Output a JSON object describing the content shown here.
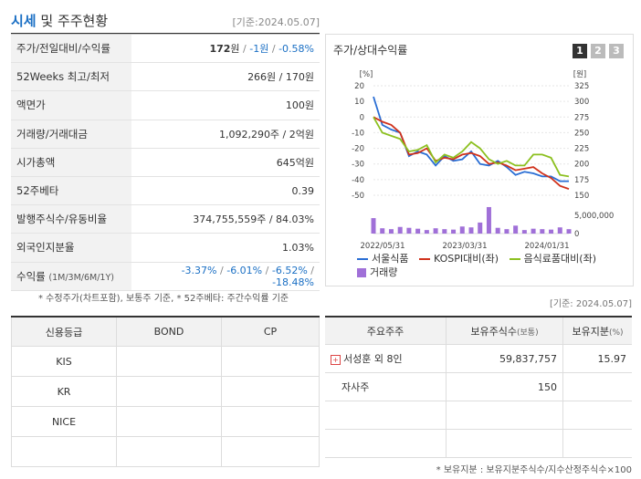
{
  "header": {
    "title_highlight": "시세",
    "title_rest": " 및 주주현황",
    "as_of": "[기준:2024.05.07]"
  },
  "stock": {
    "price_label": "주가/전일대비/수익률",
    "price": "172",
    "price_unit": "원",
    "change": "-1원",
    "rate": "-0.58%",
    "w52_label": "52Weeks 최고/최저",
    "w52_value": "266원 / 170원",
    "par_label": "액면가",
    "par_value": "100원",
    "volume_label": "거래량/거래대금",
    "volume_value": "1,092,290주 / 2억원",
    "mcap_label": "시가총액",
    "mcap_value": "645억원",
    "beta_label": "52주베타",
    "beta_value": "0.39",
    "shares_label": "발행주식수/유동비율",
    "shares_value": "374,755,559주 / 84.03%",
    "foreign_label": "외국인지분율",
    "foreign_value": "1.03%",
    "return_label": "수익률",
    "return_periods": "(1M/3M/6M/1Y)",
    "return_1m": "-3.37%",
    "return_3m": "-6.01%",
    "return_6m": "-6.52%",
    "return_1y": "-18.48%"
  },
  "footnote1": "* 수정주가(차트포함), 보통주 기준, * 52주베타: 주간수익률 기준",
  "chart_panel": {
    "title": "주가/상대수익률",
    "pages": [
      "1",
      "2",
      "3"
    ]
  },
  "chart_data": {
    "type": "line",
    "left_unit": "[%]",
    "right_unit": "[원]",
    "left_ticks": [
      20,
      10,
      0,
      -10,
      -20,
      -30,
      -40,
      -50
    ],
    "right_ticks": [
      325,
      300,
      275,
      250,
      225,
      200,
      175,
      150
    ],
    "volume_tick": "5,000,000",
    "volume_zero": "0",
    "x_ticks": [
      "2022/05/31",
      "2023/03/31",
      "2024/01/31"
    ],
    "ylim_left": [
      -50,
      20
    ],
    "series": [
      {
        "name": "서울식품",
        "color": "#2a6ed4",
        "values": [
          13,
          -5,
          -8,
          -10,
          -25,
          -22,
          -24,
          -31,
          -25,
          -28,
          -27,
          -22,
          -30,
          -31,
          -28,
          -32,
          -37,
          -35,
          -36,
          -38,
          -38,
          -41,
          -41
        ]
      },
      {
        "name": "KOSPI대비(좌)",
        "color": "#d0321c",
        "values": [
          0,
          -3,
          -5,
          -10,
          -24,
          -23,
          -20,
          -28,
          -26,
          -27,
          -24,
          -23,
          -25,
          -30,
          -29,
          -31,
          -34,
          -33,
          -32,
          -36,
          -39,
          -44,
          -46
        ]
      },
      {
        "name": "음식료품대비(좌)",
        "color": "#8cc020",
        "values": [
          0,
          -10,
          -12,
          -14,
          -22,
          -21,
          -18,
          -29,
          -24,
          -26,
          -22,
          -16,
          -20,
          -27,
          -30,
          -28,
          -31,
          -31,
          -24,
          -24,
          -26,
          -37,
          -38
        ]
      }
    ],
    "volume": {
      "name": "거래량",
      "color": "#a070d8",
      "values": [
        3.5,
        1.2,
        1.0,
        1.5,
        1.3,
        1.1,
        0.8,
        1.2,
        1.0,
        0.9,
        1.6,
        1.4,
        2.5,
        6.0,
        1.3,
        1.0,
        1.8,
        0.8,
        1.1,
        1.0,
        0.9,
        1.4,
        1.0
      ]
    }
  },
  "as_of2": "[기준: 2024.05.07]",
  "credit": {
    "headers": [
      "신용등급",
      "BOND",
      "CP"
    ],
    "rows": [
      {
        "agency": "KIS",
        "bond": "",
        "cp": ""
      },
      {
        "agency": "KR",
        "bond": "",
        "cp": ""
      },
      {
        "agency": "NICE",
        "bond": "",
        "cp": ""
      },
      {
        "agency": "",
        "bond": "",
        "cp": ""
      }
    ]
  },
  "holders": {
    "headers": [
      "주요주주",
      "보유주식수",
      "(보통)",
      "보유지분",
      "(%)"
    ],
    "rows": [
      {
        "name": "서성훈 외 8인",
        "shares": "59,837,757",
        "pct": "15.97",
        "expandable": true
      },
      {
        "name": "자사주",
        "shares": "150",
        "pct": "",
        "expandable": false
      },
      {
        "name": "",
        "shares": "",
        "pct": "",
        "expandable": false
      },
      {
        "name": "",
        "shares": "",
        "pct": "",
        "expandable": false
      }
    ]
  },
  "footnote2": "* 보유지분 : 보유지분주식수/지수산정주식수×100"
}
